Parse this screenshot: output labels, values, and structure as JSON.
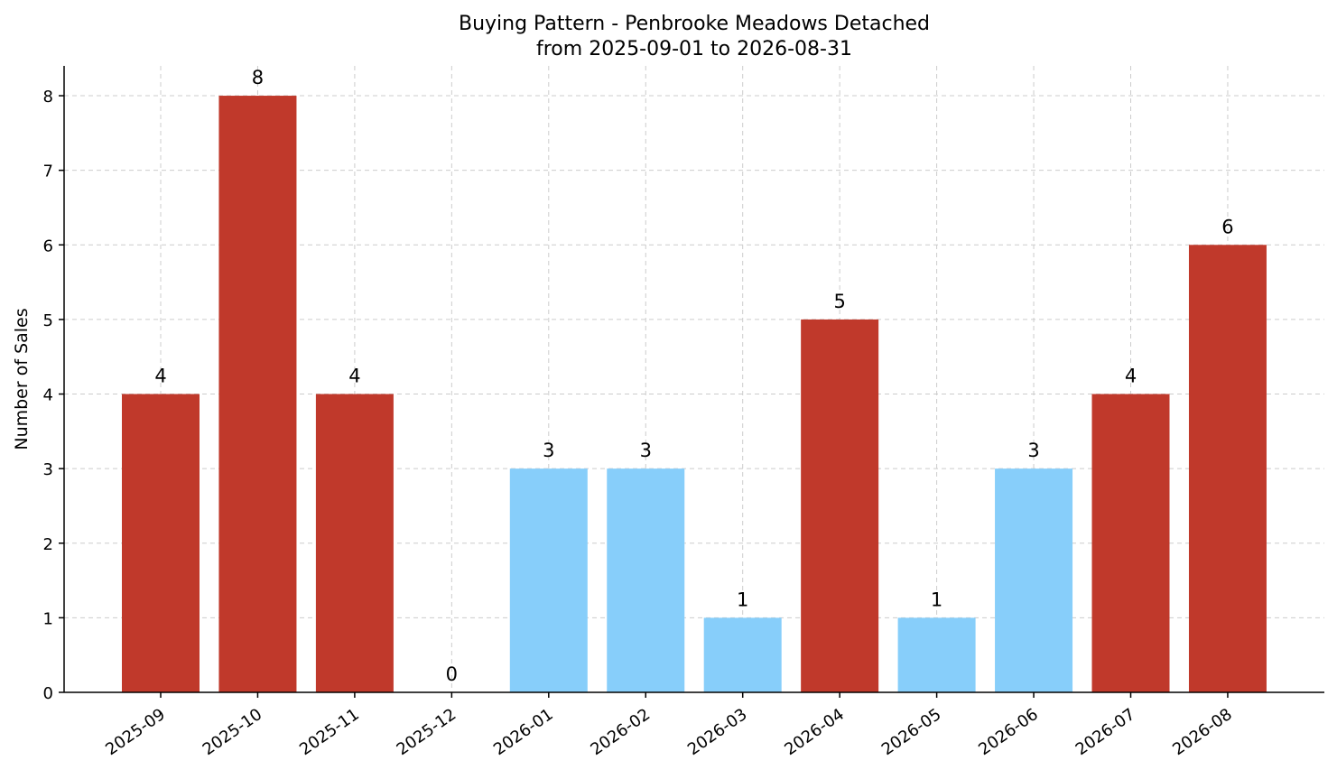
{
  "chart_data": {
    "type": "bar",
    "title": "Buying Pattern - Penbrooke Meadows Detached",
    "subtitle": "from 2025-09-01 to 2026-08-31",
    "xlabel": "",
    "ylabel": "Number of Sales",
    "categories": [
      "2025-09",
      "2025-10",
      "2025-11",
      "2025-12",
      "2026-01",
      "2026-02",
      "2026-03",
      "2026-04",
      "2026-05",
      "2026-06",
      "2026-07",
      "2026-08"
    ],
    "values": [
      4,
      8,
      4,
      0,
      3,
      3,
      1,
      5,
      1,
      3,
      4,
      6
    ],
    "bar_colors": [
      "#c0392b",
      "#c0392b",
      "#c0392b",
      "#87cefa",
      "#87cefa",
      "#87cefa",
      "#87cefa",
      "#c0392b",
      "#87cefa",
      "#87cefa",
      "#c0392b",
      "#c0392b"
    ],
    "yticks": [
      0,
      1,
      2,
      3,
      4,
      5,
      6,
      7,
      8
    ],
    "ylim": [
      0,
      8.4
    ],
    "grid": true,
    "legend": "none"
  }
}
